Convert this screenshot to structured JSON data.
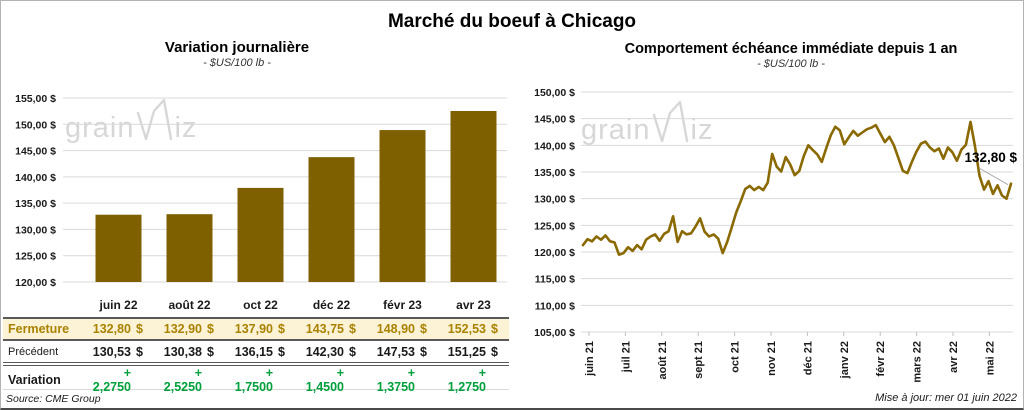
{
  "page": {
    "title": "Marché du boeuf à Chicago",
    "source_note": "Source: CME Group",
    "update_note": "Mise à jour: mer 01 juin 2022",
    "watermark": {
      "text": "grainwiz",
      "prefix": "grain",
      "suffix": "iz"
    }
  },
  "colors": {
    "bar_gold": "#7F6000",
    "line_gold": "#8A6900",
    "table_gold_text": "#A98200",
    "fermeture_row_bg": "#FCF3D7",
    "variation_green": "#00A03C",
    "gridline": "#D9D9D9",
    "watermark_gray": "#D7D7D7",
    "leader_gray": "#A8A8A8"
  },
  "chart_data": [
    {
      "type": "bar",
      "title": "Variation journalière",
      "subtitle": "- $US/100 lb -",
      "categories": [
        "juin 22",
        "août 22",
        "oct 22",
        "déc 22",
        "févr 23",
        "avr 23"
      ],
      "values": [
        132.8,
        132.9,
        137.9,
        143.75,
        148.9,
        152.53
      ],
      "ylabel": "",
      "xlabel": "",
      "ylim": [
        120,
        155
      ],
      "ytick_step": 5,
      "ytick_labels": [
        "155,00 $",
        "150,00 $",
        "145,00 $",
        "140,00 $",
        "135,00 $",
        "130,00 $",
        "125,00 $",
        "120,00 $"
      ],
      "grid": true,
      "legend": "none"
    },
    {
      "type": "line",
      "title": "Comportement échéance immédiate depuis 1 an",
      "subtitle": "- $US/100 lb -",
      "x_labels": [
        "juin 21",
        "juil 21",
        "août 21",
        "sept 21",
        "oct 21",
        "nov 21",
        "déc 21",
        "janv 22",
        "févr 22",
        "mars 22",
        "avr 22",
        "mai 22"
      ],
      "values": [
        121.3,
        122.4,
        122.0,
        122.9,
        122.3,
        123.1,
        122.0,
        121.8,
        119.5,
        119.8,
        120.9,
        120.2,
        121.3,
        120.5,
        122.3,
        122.9,
        123.3,
        122.1,
        123.4,
        123.9,
        126.7,
        121.9,
        123.9,
        123.3,
        123.5,
        124.8,
        126.3,
        123.8,
        122.9,
        123.3,
        122.5,
        119.8,
        121.9,
        124.6,
        127.4,
        129.5,
        131.8,
        132.4,
        131.6,
        132.2,
        131.6,
        133.0,
        138.4,
        136.0,
        135.1,
        137.8,
        136.4,
        134.4,
        135.2,
        138.0,
        140.0,
        139.1,
        138.3,
        136.9,
        139.5,
        141.9,
        143.5,
        142.8,
        140.2,
        141.5,
        142.7,
        141.8,
        142.4,
        143.0,
        143.3,
        143.8,
        142.2,
        140.6,
        141.6,
        140.0,
        137.6,
        135.2,
        134.8,
        136.9,
        138.8,
        140.3,
        140.7,
        139.6,
        138.9,
        139.4,
        137.5,
        139.6,
        138.7,
        137.1,
        139.2,
        140.1,
        144.4,
        139.8,
        134.3,
        131.7,
        133.3,
        130.9,
        132.5,
        130.6,
        130.0,
        132.8
      ],
      "ylim": [
        105,
        150
      ],
      "ytick_step": 5,
      "ytick_labels": [
        "150,00 $",
        "145,00 $",
        "140,00 $",
        "135,00 $",
        "130,00 $",
        "125,00 $",
        "120,00 $",
        "115,00 $",
        "110,00 $",
        "105,00 $"
      ],
      "annotation": {
        "text": "132,80 $",
        "value": 132.8
      },
      "grid": true,
      "legend": "none"
    }
  ],
  "table": {
    "columns": [
      "juin 22",
      "août 22",
      "oct 22",
      "déc 22",
      "févr 23",
      "avr 23"
    ],
    "rows": [
      {
        "label": "Fermeture",
        "cells": [
          {
            "num": "132,80",
            "cur": "$"
          },
          {
            "num": "132,90",
            "cur": "$"
          },
          {
            "num": "137,90",
            "cur": "$"
          },
          {
            "num": "143,75",
            "cur": "$"
          },
          {
            "num": "148,90",
            "cur": "$"
          },
          {
            "num": "152,53",
            "cur": "$"
          }
        ]
      },
      {
        "label": "Précédent",
        "cells": [
          {
            "num": "130,53",
            "cur": "$"
          },
          {
            "num": "130,38",
            "cur": "$"
          },
          {
            "num": "136,15",
            "cur": "$"
          },
          {
            "num": "142,30",
            "cur": "$"
          },
          {
            "num": "147,53",
            "cur": "$"
          },
          {
            "num": "151,25",
            "cur": "$"
          }
        ]
      },
      {
        "label": "Variation",
        "cells": [
          {
            "num": "+ 2,2750",
            "cur": ""
          },
          {
            "num": "+ 2,5250",
            "cur": ""
          },
          {
            "num": "+ 1,7500",
            "cur": ""
          },
          {
            "num": "+ 1,4500",
            "cur": ""
          },
          {
            "num": "+ 1,3750",
            "cur": ""
          },
          {
            "num": "+ 1,2750",
            "cur": ""
          }
        ]
      }
    ]
  }
}
